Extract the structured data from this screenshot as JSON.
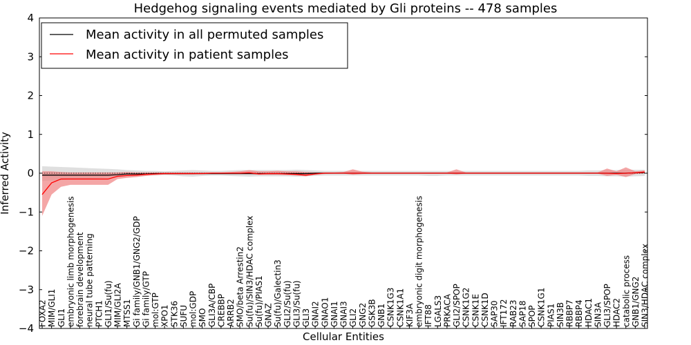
{
  "chart_data": {
    "type": "line",
    "title": "Hedgehog signaling events mediated by Gli proteins -- 478 samples",
    "xlabel": "Cellular Entities",
    "ylabel": "Inferred Activity",
    "ylim": [
      -4,
      4
    ],
    "yticks": [
      -4,
      -3,
      -2,
      -1,
      0,
      1,
      2,
      3,
      4
    ],
    "grid": false,
    "legend_position": "top-left",
    "categories": [
      "FOXA2",
      "MIM/GLI1",
      "GLI1",
      "embryonic limb morphogenesis",
      "forebrain development",
      "neural tube patterning",
      "PTCH1",
      "GLI1/Su(fu)",
      "MIM/GLI2A",
      "MTSS1",
      "Gi family/GNB1/GNG2/GDP",
      "Gi family/GTP",
      "mol:GTP",
      "XPO1",
      "STK36",
      "SUFU",
      "mol:GDP",
      "SMO",
      "GLI3A/CBP",
      "CREBBP",
      "ARRB2",
      "SMO/beta Arrestin2",
      "Su(fu)/SIN3/HDAC complex",
      "Su(fu)/PIAS1",
      "GNAZ",
      "Su(fu)/Galectin3",
      "GLI2/Su(fu)",
      "GLI3/Su(fu)",
      "GLI3",
      "GNAI2",
      "GNAO1",
      "GNAI1",
      "GNAI3",
      "GLI2",
      "GNG2",
      "GSK3B",
      "GNB1",
      "CSNK1G3",
      "CSNK1A1",
      "KIF3A",
      "embryonic digit morphogenesis",
      "IFT88",
      "LGALS3",
      "PRKACA",
      "GLI2/SPOP",
      "CSNK1G2",
      "CSNK1E",
      "CSNK1D",
      "SAP30",
      "IFT172",
      "RAB23",
      "SAP18",
      "SPOP",
      "CSNK1G1",
      "PIAS1",
      "SIN3B",
      "RBBP7",
      "RBBP4",
      "HDAC1",
      "SIN3A",
      "GLI3/SPOP",
      "HDAC2",
      "catabolic process",
      "GNB1/GNG2",
      "SIN3/HDAC complex"
    ],
    "series": [
      {
        "name": "Mean activity in all permuted samples",
        "color": "#000000",
        "values": [
          -0.05,
          -0.05,
          -0.05,
          -0.05,
          -0.05,
          -0.05,
          -0.05,
          -0.05,
          -0.04,
          -0.02,
          -0.02,
          -0.02,
          -0.01,
          -0.01,
          -0.01,
          -0.01,
          -0.01,
          -0.01,
          -0.01,
          -0.01,
          -0.01,
          -0.01,
          -0.01,
          -0.01,
          -0.01,
          -0.01,
          -0.01,
          -0.01,
          -0.01,
          0,
          0,
          0,
          0,
          0,
          0,
          0,
          0,
          0,
          0,
          0,
          0,
          0,
          0,
          0,
          0,
          0,
          0,
          0,
          0,
          0,
          0,
          0,
          0,
          0,
          0,
          0,
          0,
          0,
          0,
          0,
          0,
          0,
          0,
          0.01,
          0.02
        ],
        "band_lower": [
          -0.2,
          -0.19,
          -0.18,
          -0.16,
          -0.15,
          -0.14,
          -0.13,
          -0.11,
          -0.1,
          -0.08,
          -0.07,
          -0.06,
          -0.06,
          -0.05,
          -0.06,
          -0.08,
          -0.09,
          -0.07,
          -0.06,
          -0.06,
          -0.07,
          -0.08,
          -0.09,
          -0.08,
          -0.08,
          -0.08,
          -0.08,
          -0.09,
          -0.08,
          -0.07,
          -0.06,
          -0.06,
          -0.06,
          -0.06,
          -0.06,
          -0.06,
          -0.06,
          -0.06,
          -0.06,
          -0.06,
          -0.06,
          -0.07,
          -0.07,
          -0.06,
          -0.06,
          -0.06,
          -0.06,
          -0.06,
          -0.06,
          -0.06,
          -0.06,
          -0.06,
          -0.06,
          -0.06,
          -0.06,
          -0.06,
          -0.06,
          -0.06,
          -0.07,
          -0.07,
          -0.08,
          -0.08,
          -0.09,
          -0.08,
          -0.07
        ],
        "band_upper": [
          0.18,
          0.17,
          0.16,
          0.15,
          0.14,
          0.13,
          0.12,
          0.11,
          0.1,
          0.08,
          0.07,
          0.06,
          0.06,
          0.05,
          0.06,
          0.07,
          0.08,
          0.07,
          0.06,
          0.06,
          0.07,
          0.08,
          0.08,
          0.08,
          0.08,
          0.08,
          0.08,
          0.09,
          0.08,
          0.07,
          0.06,
          0.06,
          0.06,
          0.06,
          0.06,
          0.06,
          0.06,
          0.06,
          0.06,
          0.06,
          0.06,
          0.06,
          0.06,
          0.06,
          0.06,
          0.06,
          0.06,
          0.06,
          0.06,
          0.06,
          0.06,
          0.06,
          0.06,
          0.06,
          0.06,
          0.06,
          0.06,
          0.06,
          0.07,
          0.07,
          0.08,
          0.08,
          0.09,
          0.09,
          0.09
        ]
      },
      {
        "name": "Mean activity in patient samples",
        "color": "#ff0000",
        "values": [
          -0.55,
          -0.25,
          -0.15,
          -0.15,
          -0.15,
          -0.15,
          -0.15,
          -0.15,
          -0.08,
          -0.06,
          -0.05,
          -0.03,
          -0.02,
          -0.01,
          -0.01,
          -0.01,
          -0.01,
          -0.01,
          0,
          0,
          0,
          0,
          0.01,
          -0.02,
          -0.01,
          -0.01,
          -0.02,
          -0.03,
          -0.05,
          -0.02,
          0,
          0,
          0,
          0,
          0,
          0,
          0,
          0,
          0,
          0,
          0,
          0,
          0,
          0,
          0,
          0,
          0,
          0,
          0,
          0,
          0,
          0,
          0,
          0,
          0,
          0,
          0,
          0,
          0,
          0,
          0,
          -0.01,
          0,
          0.01,
          0.03
        ],
        "band_lower": [
          -1.1,
          -0.55,
          -0.35,
          -0.3,
          -0.3,
          -0.3,
          -0.3,
          -0.3,
          -0.15,
          -0.12,
          -0.1,
          -0.07,
          -0.05,
          -0.03,
          -0.03,
          -0.03,
          -0.03,
          -0.02,
          -0.02,
          -0.02,
          -0.02,
          -0.02,
          -0.02,
          -0.04,
          -0.04,
          -0.04,
          -0.05,
          -0.06,
          -0.08,
          -0.04,
          -0.02,
          -0.01,
          -0.01,
          -0.04,
          -0.02,
          -0.01,
          -0.01,
          -0.01,
          -0.01,
          -0.01,
          -0.01,
          -0.01,
          -0.01,
          -0.01,
          -0.03,
          -0.01,
          -0.01,
          -0.01,
          -0.01,
          -0.01,
          -0.01,
          -0.01,
          -0.01,
          -0.01,
          -0.01,
          -0.01,
          -0.01,
          -0.01,
          -0.01,
          -0.01,
          -0.07,
          -0.04,
          -0.1,
          -0.02,
          -0.01
        ],
        "band_upper": [
          0.05,
          0.05,
          0.03,
          0.02,
          0.02,
          0.02,
          0.02,
          0.02,
          0.02,
          0.03,
          0.02,
          0.02,
          0.02,
          0.02,
          0.02,
          0.02,
          0.02,
          0.02,
          0.02,
          0.02,
          0.03,
          0.05,
          0.08,
          0.05,
          0.05,
          0.06,
          0.05,
          0.05,
          0.03,
          0.02,
          0.02,
          0.02,
          0.03,
          0.1,
          0.04,
          0.02,
          0.02,
          0.02,
          0.02,
          0.02,
          0.02,
          0.02,
          0.02,
          0.02,
          0.1,
          0.02,
          0.02,
          0.02,
          0.02,
          0.02,
          0.02,
          0.02,
          0.02,
          0.02,
          0.02,
          0.02,
          0.02,
          0.02,
          0.02,
          0.02,
          0.12,
          0.05,
          0.15,
          0.05,
          0.07
        ]
      }
    ],
    "band_colors": {
      "permuted": "#d9d9d9",
      "patient": "#f08080"
    },
    "reference_line": 0
  }
}
